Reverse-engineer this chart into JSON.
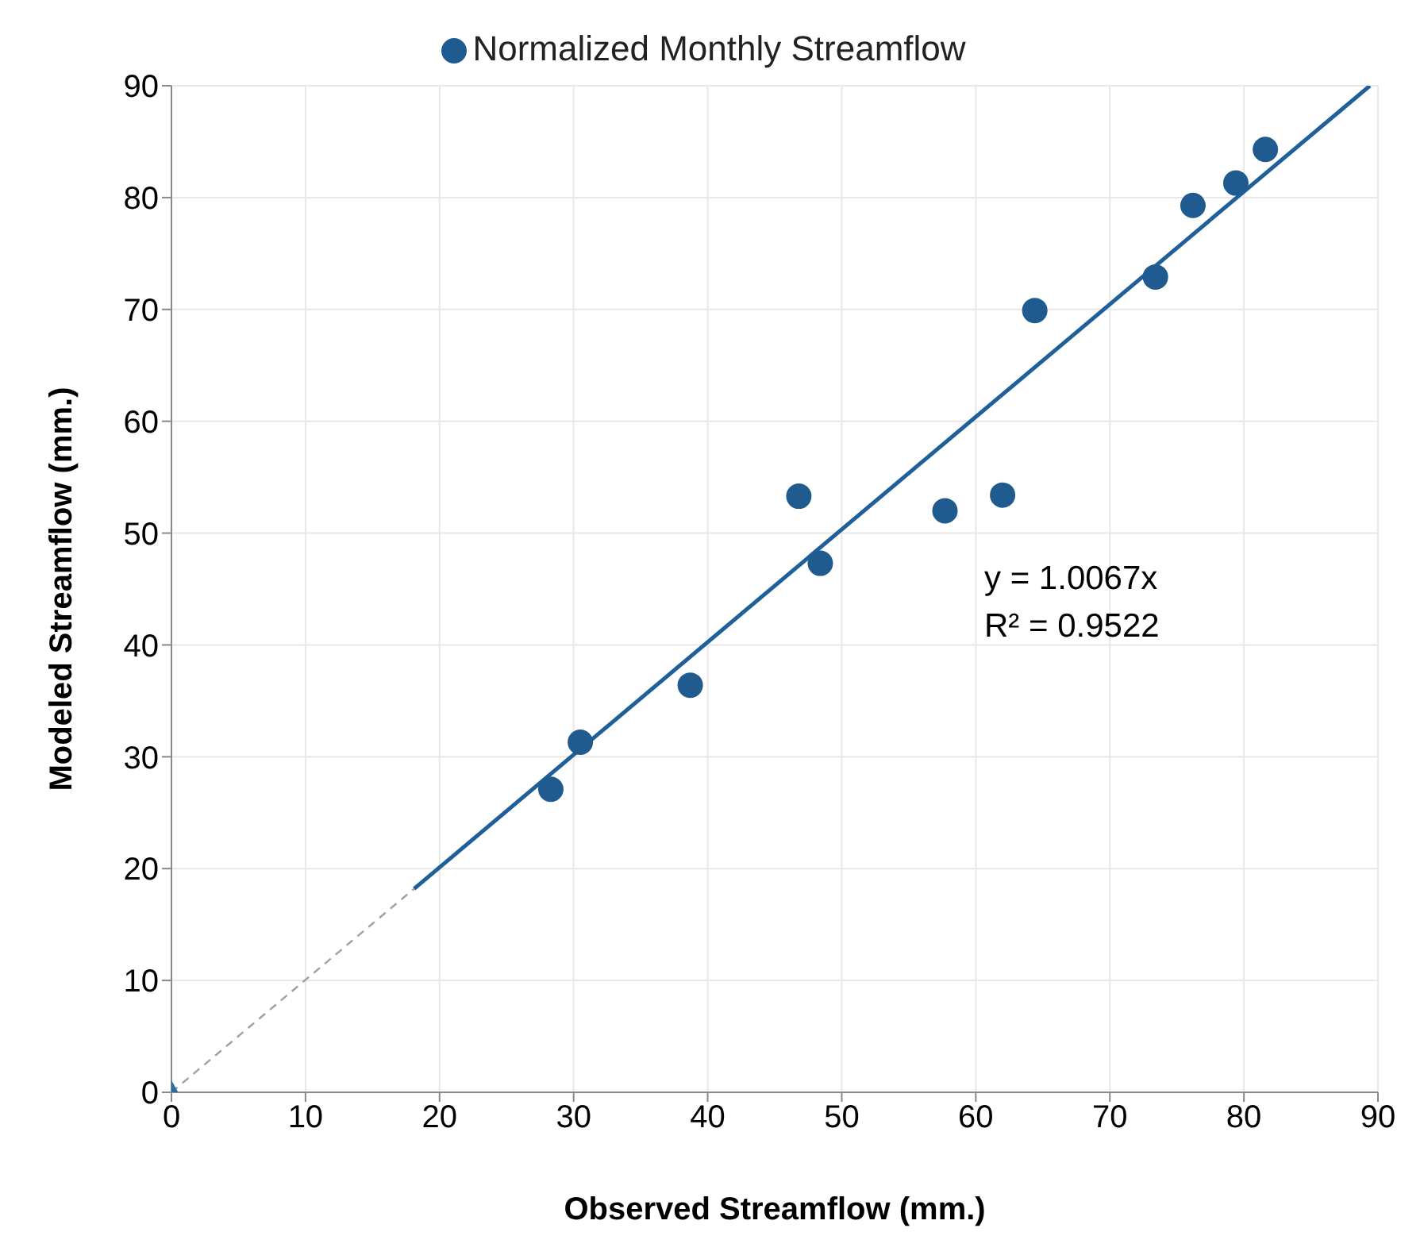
{
  "chart_data": {
    "type": "scatter",
    "xlabel": "Observed Streamflow (mm.)",
    "ylabel": "Modeled Streamflow (mm.)",
    "xlim": [
      0,
      90
    ],
    "xticks": [
      0,
      10,
      20,
      30,
      40,
      50,
      60,
      70,
      80,
      90
    ],
    "ylim": [
      0,
      90
    ],
    "yticks": [
      0,
      10,
      20,
      30,
      40,
      50,
      60,
      70,
      80,
      90
    ],
    "grid": true,
    "legend": "top",
    "annotations": [
      "y = 1.0067x",
      "R² = 0.9522"
    ],
    "series": [
      {
        "name": "Normalized Monthly Streamflow",
        "marker": "circle",
        "color": "#1f5b8f",
        "x": [
          28.3,
          30.5,
          38.7,
          46.8,
          48.4,
          57.7,
          62.0,
          64.4,
          73.4,
          76.2,
          79.4,
          81.6
        ],
        "values": [
          27.1,
          31.3,
          36.4,
          53.3,
          47.3,
          52.0,
          53.4,
          69.9,
          72.9,
          79.3,
          81.3,
          84.3
        ]
      },
      {
        "type": "scatter",
        "marker": "diamond",
        "color": "#2e6da4",
        "x": [
          0
        ],
        "values": [
          0
        ]
      },
      {
        "type": "line",
        "marker": "none",
        "line_style": "solid",
        "color": "#1f5f9a",
        "x": [
          18.1,
          89.4
        ],
        "values": [
          18.2,
          90
        ]
      },
      {
        "type": "line",
        "marker": "none",
        "line_style": "dashed",
        "color": "#a0a0a0",
        "x": [
          0,
          18.1
        ],
        "values": [
          0,
          18.2
        ]
      }
    ]
  }
}
